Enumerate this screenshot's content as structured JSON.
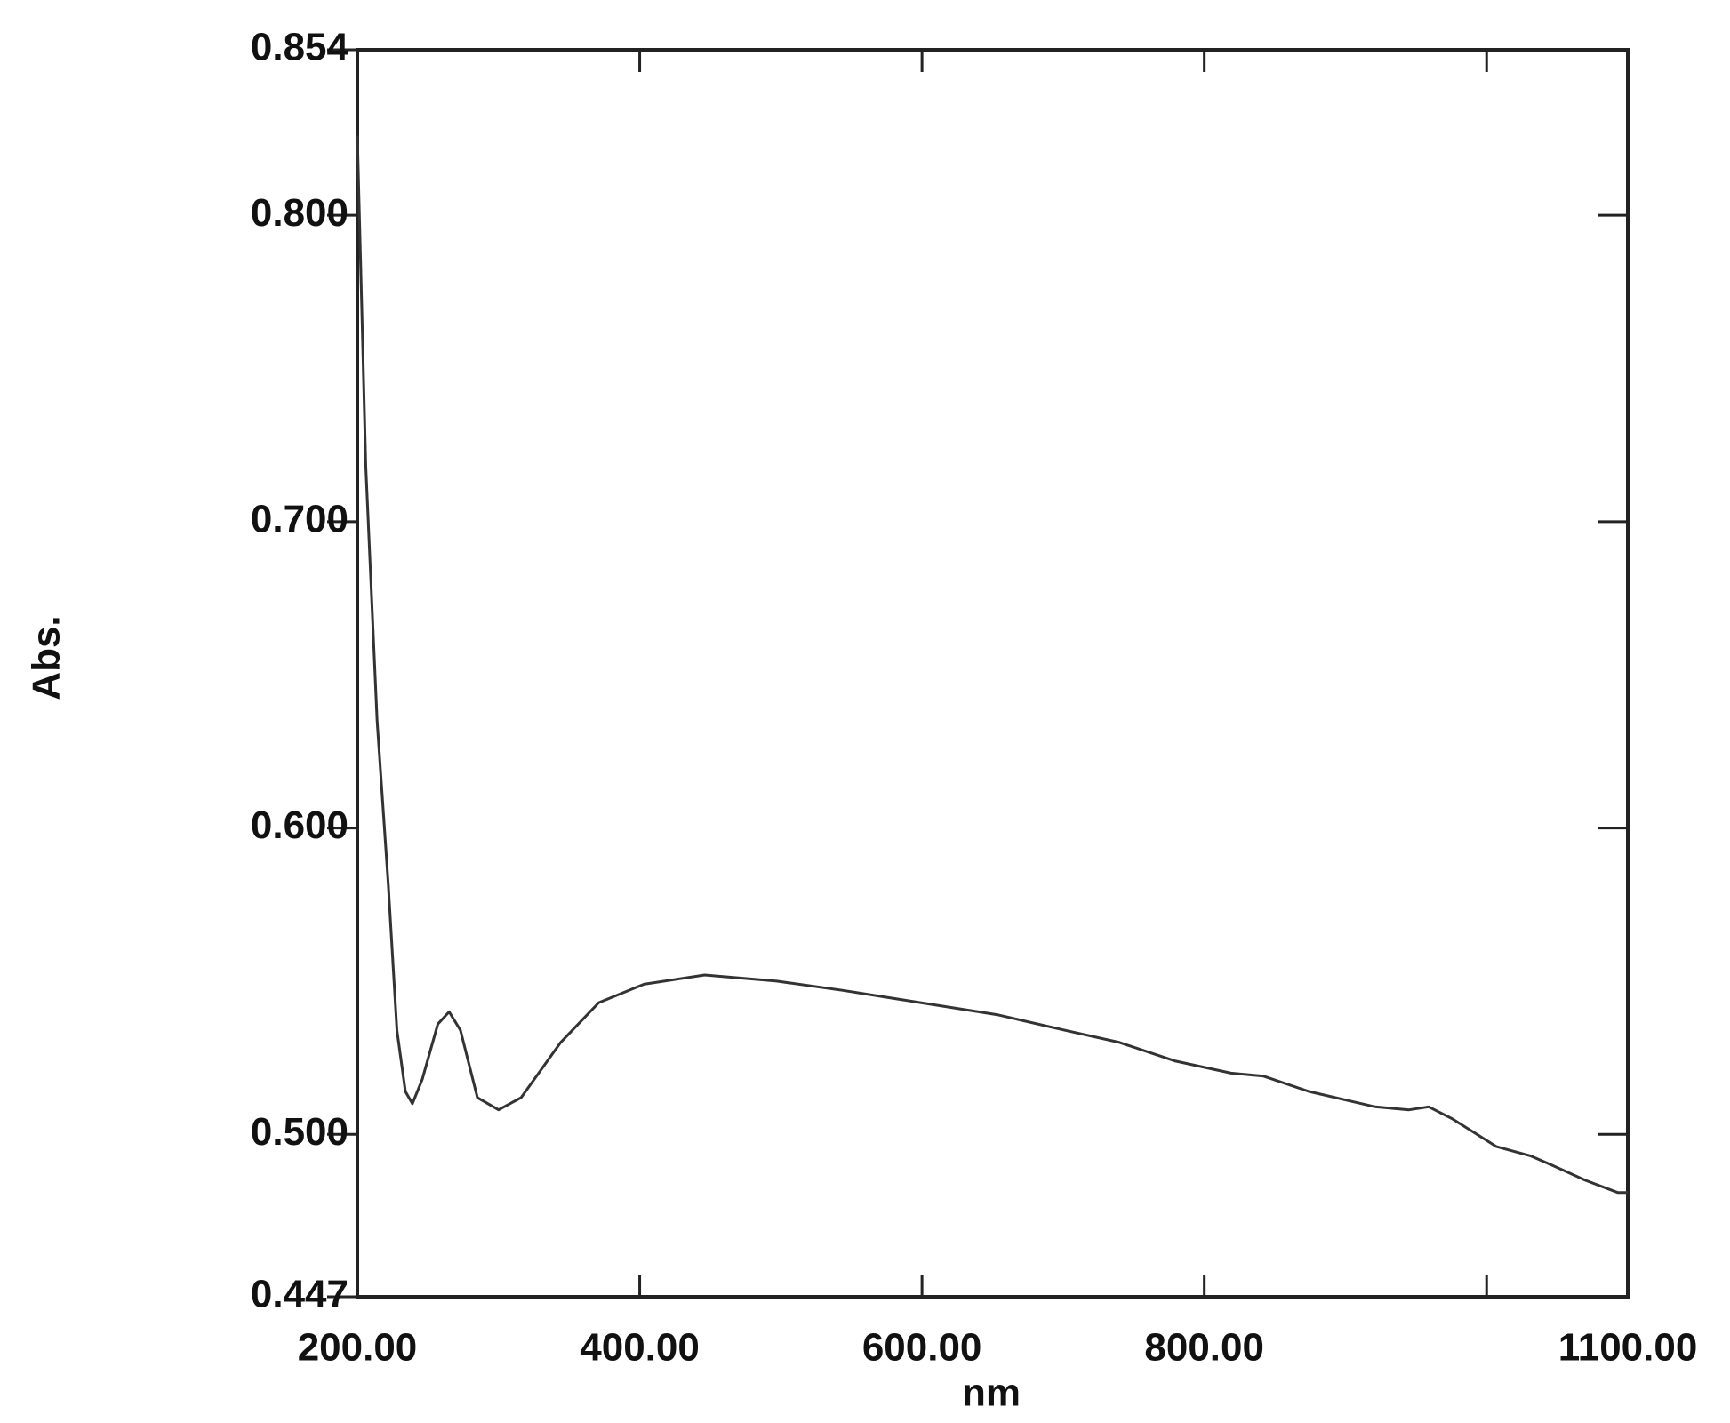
{
  "chart_data": {
    "type": "line",
    "xlabel": "nm",
    "ylabel": "Abs.",
    "xlim": [
      200,
      1100
    ],
    "ylim": [
      0.447,
      0.854
    ],
    "xticks": [
      {
        "value": 200,
        "label": "200.00"
      },
      {
        "value": 400,
        "label": "400.00"
      },
      {
        "value": 600,
        "label": "600.00"
      },
      {
        "value": 800,
        "label": "800.00"
      },
      {
        "value": 1000,
        "label": null
      },
      {
        "value": 1100,
        "label": "1100.00"
      }
    ],
    "yticks": [
      {
        "value": 0.447,
        "label": "0.447"
      },
      {
        "value": 0.5,
        "label": "0.500"
      },
      {
        "value": 0.6,
        "label": "0.600"
      },
      {
        "value": 0.7,
        "label": "0.700"
      },
      {
        "value": 0.8,
        "label": "0.800"
      },
      {
        "value": 0.854,
        "label": "0.854"
      }
    ],
    "color": "#333333",
    "x": [
      200,
      206,
      214,
      222,
      228,
      234,
      239,
      246,
      257,
      265,
      273,
      285,
      300,
      316,
      344,
      371,
      403,
      446,
      497,
      544,
      599,
      654,
      701,
      740,
      779,
      819,
      842,
      874,
      921,
      945,
      959,
      976,
      1007,
      1031,
      1046,
      1070,
      1093,
      1100
    ],
    "values": [
      0.826,
      0.718,
      0.635,
      0.581,
      0.534,
      0.514,
      0.51,
      0.518,
      0.536,
      0.54,
      0.534,
      0.512,
      0.508,
      0.512,
      0.53,
      0.543,
      0.549,
      0.552,
      0.55,
      0.547,
      0.543,
      0.539,
      0.534,
      0.53,
      0.524,
      0.52,
      0.519,
      0.514,
      0.509,
      0.508,
      0.509,
      0.505,
      0.496,
      0.493,
      0.49,
      0.485,
      0.481,
      0.481
    ]
  }
}
